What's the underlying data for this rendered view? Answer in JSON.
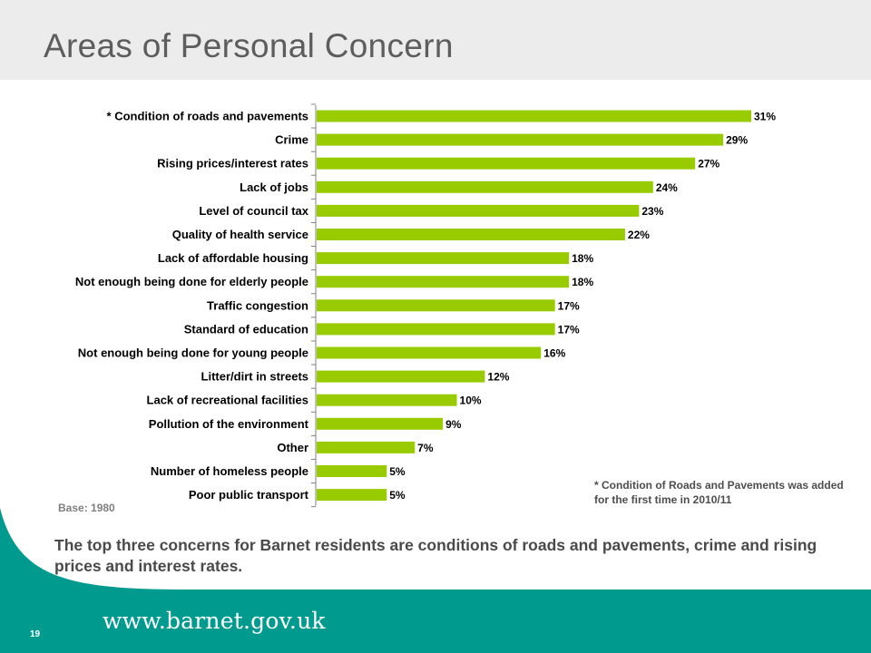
{
  "header": {
    "title": "Areas of Personal Concern"
  },
  "chart_data": {
    "type": "bar",
    "orientation": "horizontal",
    "categories": [
      "* Condition of roads and pavements",
      "Crime",
      "Rising prices/interest rates",
      "Lack of jobs",
      "Level of council tax",
      "Quality of health service",
      "Lack of affordable housing",
      "Not enough being done for elderly people",
      "Traffic congestion",
      "Standard of education",
      "Not enough being done for young people",
      "Litter/dirt in streets",
      "Lack of recreational facilities",
      "Pollution of the environment",
      "Other",
      "Number of homeless people",
      "Poor public transport"
    ],
    "values": [
      31,
      29,
      27,
      24,
      23,
      22,
      18,
      18,
      17,
      17,
      16,
      12,
      10,
      9,
      7,
      5,
      5
    ],
    "value_labels": [
      "31%",
      "29%",
      "27%",
      "24%",
      "23%",
      "22%",
      "18%",
      "18%",
      "17%",
      "17%",
      "16%",
      "12%",
      "10%",
      "9%",
      "7%",
      "5%",
      "5%"
    ],
    "xlim": [
      0,
      31
    ],
    "grid": false,
    "legend": "none",
    "bar_color": "#99cc00"
  },
  "notes": {
    "base": "Base: 1980",
    "footnote": "* Condition of Roads and Pavements was added for the first time in 2010/11",
    "summary": "The top three concerns for Barnet residents are conditions of roads and pavements, crime and rising prices and interest rates."
  },
  "footer": {
    "page_number": "19",
    "url": "www.barnet.gov.uk",
    "band_color": "#009a8f"
  }
}
